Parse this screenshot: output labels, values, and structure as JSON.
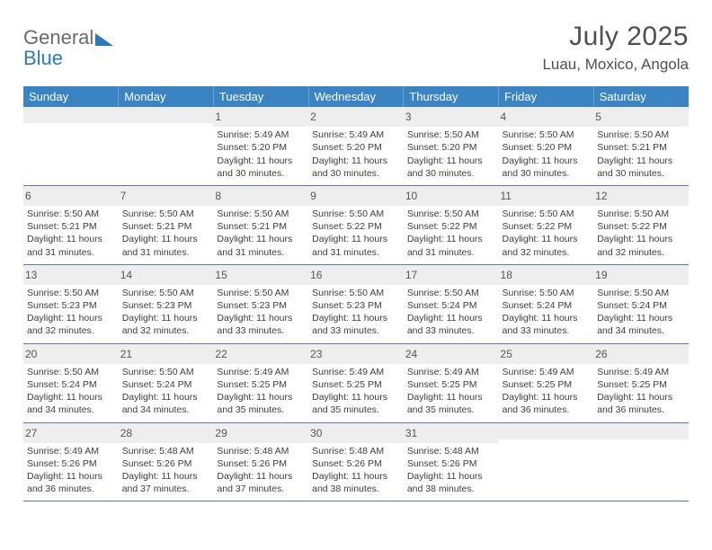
{
  "colors": {
    "header_blue": "#3b84c4",
    "logo_gray": "#6a6a6a",
    "logo_blue": "#2f78bd",
    "row_divider": "#5a7aa3",
    "daynum_bg": "#eeeeee",
    "text": "#3d3d3d",
    "title_gray": "#4f4f4f",
    "background": "#ffffff"
  },
  "typography": {
    "title_fontsize": 30,
    "location_fontsize": 17,
    "dayhead_fontsize": 13,
    "daynum_fontsize": 12,
    "body_fontsize": 10.5
  },
  "logo": {
    "line1": "General",
    "line2": "Blue"
  },
  "title": "July 2025",
  "location": "Luau, Moxico, Angola",
  "day_headers": [
    "Sunday",
    "Monday",
    "Tuesday",
    "Wednesday",
    "Thursday",
    "Friday",
    "Saturday"
  ],
  "weeks": [
    [
      {
        "day": "",
        "lines": []
      },
      {
        "day": "",
        "lines": []
      },
      {
        "day": "1",
        "lines": [
          "Sunrise: 5:49 AM",
          "Sunset: 5:20 PM",
          "Daylight: 11 hours",
          "and 30 minutes."
        ]
      },
      {
        "day": "2",
        "lines": [
          "Sunrise: 5:49 AM",
          "Sunset: 5:20 PM",
          "Daylight: 11 hours",
          "and 30 minutes."
        ]
      },
      {
        "day": "3",
        "lines": [
          "Sunrise: 5:50 AM",
          "Sunset: 5:20 PM",
          "Daylight: 11 hours",
          "and 30 minutes."
        ]
      },
      {
        "day": "4",
        "lines": [
          "Sunrise: 5:50 AM",
          "Sunset: 5:20 PM",
          "Daylight: 11 hours",
          "and 30 minutes."
        ]
      },
      {
        "day": "5",
        "lines": [
          "Sunrise: 5:50 AM",
          "Sunset: 5:21 PM",
          "Daylight: 11 hours",
          "and 30 minutes."
        ]
      }
    ],
    [
      {
        "day": "6",
        "lines": [
          "Sunrise: 5:50 AM",
          "Sunset: 5:21 PM",
          "Daylight: 11 hours",
          "and 31 minutes."
        ]
      },
      {
        "day": "7",
        "lines": [
          "Sunrise: 5:50 AM",
          "Sunset: 5:21 PM",
          "Daylight: 11 hours",
          "and 31 minutes."
        ]
      },
      {
        "day": "8",
        "lines": [
          "Sunrise: 5:50 AM",
          "Sunset: 5:21 PM",
          "Daylight: 11 hours",
          "and 31 minutes."
        ]
      },
      {
        "day": "9",
        "lines": [
          "Sunrise: 5:50 AM",
          "Sunset: 5:22 PM",
          "Daylight: 11 hours",
          "and 31 minutes."
        ]
      },
      {
        "day": "10",
        "lines": [
          "Sunrise: 5:50 AM",
          "Sunset: 5:22 PM",
          "Daylight: 11 hours",
          "and 31 minutes."
        ]
      },
      {
        "day": "11",
        "lines": [
          "Sunrise: 5:50 AM",
          "Sunset: 5:22 PM",
          "Daylight: 11 hours",
          "and 32 minutes."
        ]
      },
      {
        "day": "12",
        "lines": [
          "Sunrise: 5:50 AM",
          "Sunset: 5:22 PM",
          "Daylight: 11 hours",
          "and 32 minutes."
        ]
      }
    ],
    [
      {
        "day": "13",
        "lines": [
          "Sunrise: 5:50 AM",
          "Sunset: 5:23 PM",
          "Daylight: 11 hours",
          "and 32 minutes."
        ]
      },
      {
        "day": "14",
        "lines": [
          "Sunrise: 5:50 AM",
          "Sunset: 5:23 PM",
          "Daylight: 11 hours",
          "and 32 minutes."
        ]
      },
      {
        "day": "15",
        "lines": [
          "Sunrise: 5:50 AM",
          "Sunset: 5:23 PM",
          "Daylight: 11 hours",
          "and 33 minutes."
        ]
      },
      {
        "day": "16",
        "lines": [
          "Sunrise: 5:50 AM",
          "Sunset: 5:23 PM",
          "Daylight: 11 hours",
          "and 33 minutes."
        ]
      },
      {
        "day": "17",
        "lines": [
          "Sunrise: 5:50 AM",
          "Sunset: 5:24 PM",
          "Daylight: 11 hours",
          "and 33 minutes."
        ]
      },
      {
        "day": "18",
        "lines": [
          "Sunrise: 5:50 AM",
          "Sunset: 5:24 PM",
          "Daylight: 11 hours",
          "and 33 minutes."
        ]
      },
      {
        "day": "19",
        "lines": [
          "Sunrise: 5:50 AM",
          "Sunset: 5:24 PM",
          "Daylight: 11 hours",
          "and 34 minutes."
        ]
      }
    ],
    [
      {
        "day": "20",
        "lines": [
          "Sunrise: 5:50 AM",
          "Sunset: 5:24 PM",
          "Daylight: 11 hours",
          "and 34 minutes."
        ]
      },
      {
        "day": "21",
        "lines": [
          "Sunrise: 5:50 AM",
          "Sunset: 5:24 PM",
          "Daylight: 11 hours",
          "and 34 minutes."
        ]
      },
      {
        "day": "22",
        "lines": [
          "Sunrise: 5:49 AM",
          "Sunset: 5:25 PM",
          "Daylight: 11 hours",
          "and 35 minutes."
        ]
      },
      {
        "day": "23",
        "lines": [
          "Sunrise: 5:49 AM",
          "Sunset: 5:25 PM",
          "Daylight: 11 hours",
          "and 35 minutes."
        ]
      },
      {
        "day": "24",
        "lines": [
          "Sunrise: 5:49 AM",
          "Sunset: 5:25 PM",
          "Daylight: 11 hours",
          "and 35 minutes."
        ]
      },
      {
        "day": "25",
        "lines": [
          "Sunrise: 5:49 AM",
          "Sunset: 5:25 PM",
          "Daylight: 11 hours",
          "and 36 minutes."
        ]
      },
      {
        "day": "26",
        "lines": [
          "Sunrise: 5:49 AM",
          "Sunset: 5:25 PM",
          "Daylight: 11 hours",
          "and 36 minutes."
        ]
      }
    ],
    [
      {
        "day": "27",
        "lines": [
          "Sunrise: 5:49 AM",
          "Sunset: 5:26 PM",
          "Daylight: 11 hours",
          "and 36 minutes."
        ]
      },
      {
        "day": "28",
        "lines": [
          "Sunrise: 5:48 AM",
          "Sunset: 5:26 PM",
          "Daylight: 11 hours",
          "and 37 minutes."
        ]
      },
      {
        "day": "29",
        "lines": [
          "Sunrise: 5:48 AM",
          "Sunset: 5:26 PM",
          "Daylight: 11 hours",
          "and 37 minutes."
        ]
      },
      {
        "day": "30",
        "lines": [
          "Sunrise: 5:48 AM",
          "Sunset: 5:26 PM",
          "Daylight: 11 hours",
          "and 38 minutes."
        ]
      },
      {
        "day": "31",
        "lines": [
          "Sunrise: 5:48 AM",
          "Sunset: 5:26 PM",
          "Daylight: 11 hours",
          "and 38 minutes."
        ]
      },
      {
        "day": "",
        "lines": []
      },
      {
        "day": "",
        "lines": []
      }
    ]
  ]
}
